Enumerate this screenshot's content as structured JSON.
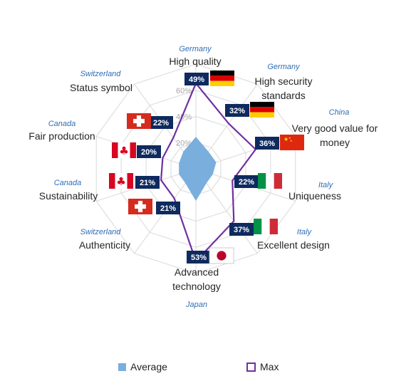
{
  "chart_data": {
    "type": "radar",
    "categories": [
      {
        "label_lines": [
          "High  quality"
        ],
        "country": "Germany",
        "flag": "germany"
      },
      {
        "label_lines": [
          "High security",
          "standards"
        ],
        "country": "Germany",
        "flag": "germany"
      },
      {
        "label_lines": [
          "Very good value for",
          "money"
        ],
        "country": "China",
        "flag": "china"
      },
      {
        "label_lines": [
          "Uniqueness"
        ],
        "country": "Italy",
        "flag": "italy"
      },
      {
        "label_lines": [
          "Excellent  design"
        ],
        "country": "Italy",
        "flag": "italy"
      },
      {
        "label_lines": [
          "Advanced",
          "technology"
        ],
        "country": "Japan",
        "flag": "japan"
      },
      {
        "label_lines": [
          "Authenticity"
        ],
        "country": "Switzerland",
        "flag": "switzerland"
      },
      {
        "label_lines": [
          "Sustainability"
        ],
        "country": "Canada",
        "flag": "canada"
      },
      {
        "label_lines": [
          "Fair production"
        ],
        "country": "Canada",
        "flag": "canada"
      },
      {
        "label_lines": [
          "Status  symbol"
        ],
        "country": "Switzerland",
        "flag": "switzerland"
      }
    ],
    "series": [
      {
        "name": "Average",
        "values": [
          18,
          12,
          12,
          10,
          10,
          18,
          10,
          10,
          10,
          12
        ],
        "color": "#7aaedc",
        "style": "filled"
      },
      {
        "name": "Max",
        "values": [
          49,
          32,
          36,
          22,
          37,
          53,
          21,
          21,
          20,
          22
        ],
        "color": "#7030a0",
        "style": "line"
      }
    ],
    "value_labels": [
      "49%",
      "32%",
      "36%",
      "22%",
      "37%",
      "53%",
      "21%",
      "21%",
      "20%",
      "22%"
    ],
    "radial_ticks": [
      "0%",
      "20%",
      "40%",
      "60%"
    ],
    "rlim": [
      0,
      60
    ],
    "legend_position": "bottom"
  },
  "legend": [
    {
      "label": "Average"
    },
    {
      "label": "Max"
    }
  ],
  "colors": {
    "badge": "#0e2a5e",
    "country": "#2f6db5",
    "grid": "#d9d9d9",
    "tick": "#a6a6a6"
  }
}
